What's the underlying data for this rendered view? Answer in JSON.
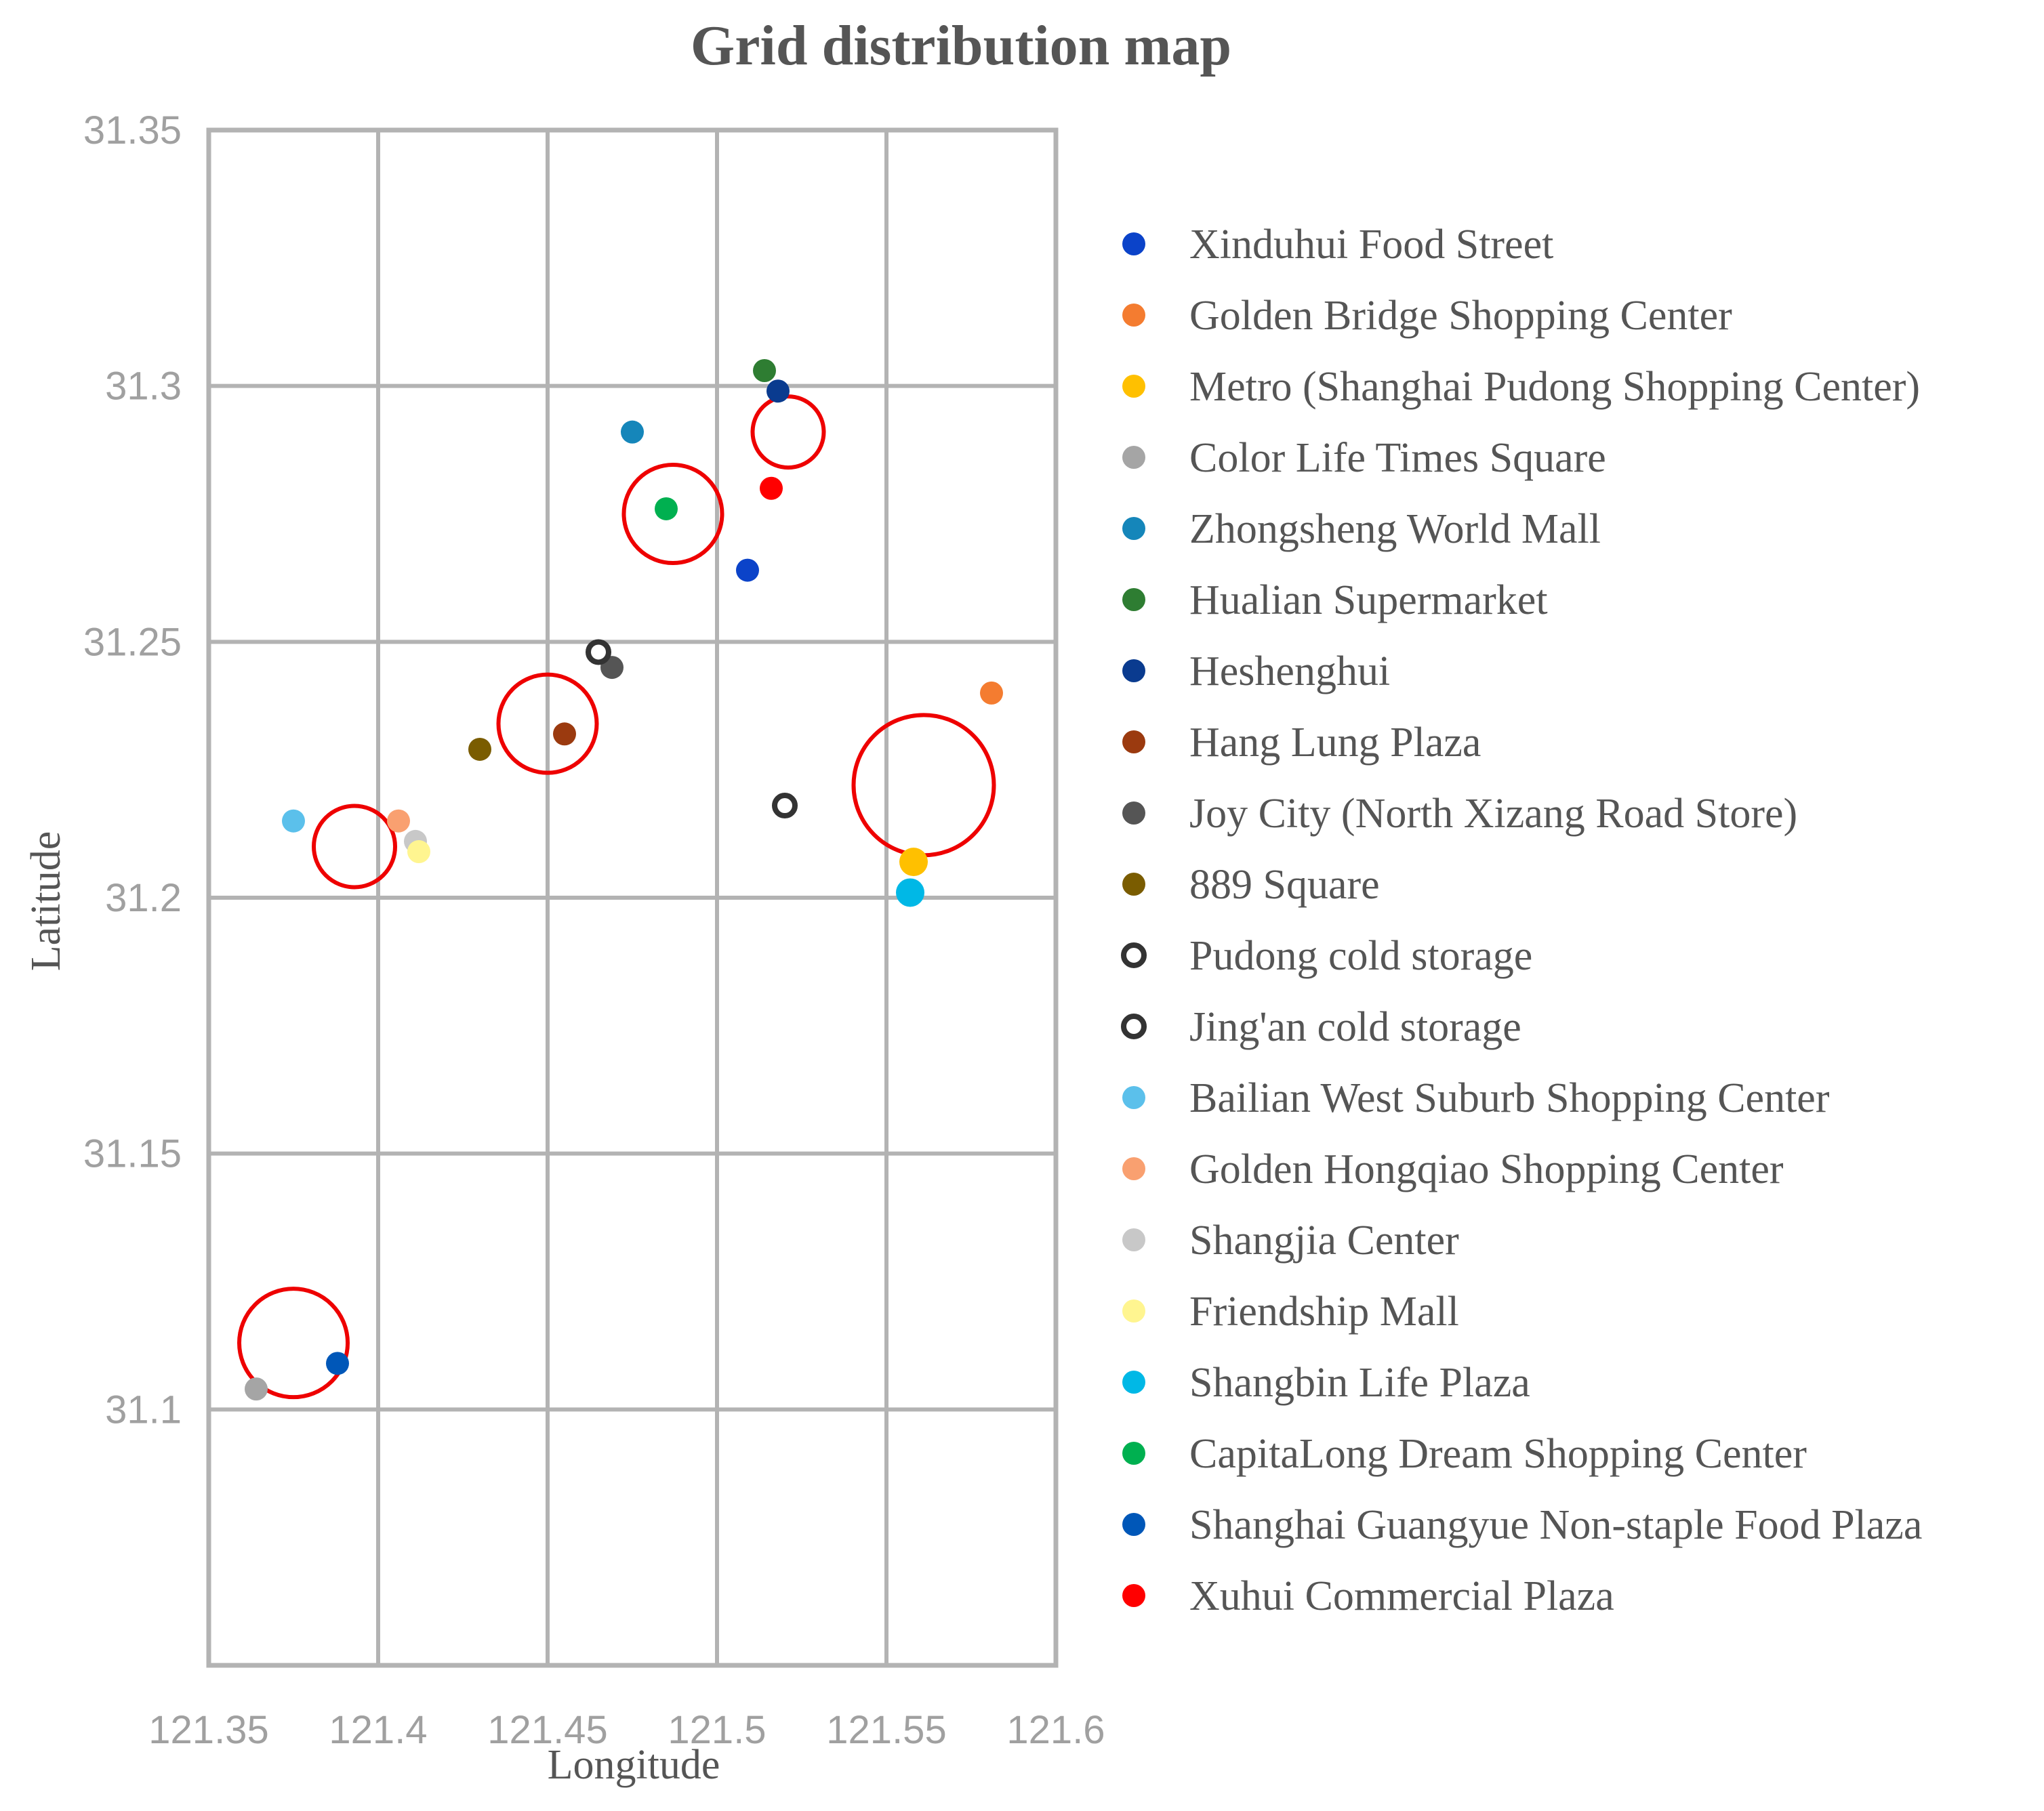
{
  "chart_data": {
    "type": "scatter",
    "title": "Grid distribution map",
    "xlabel": "Longitude",
    "ylabel": "Latitude",
    "xlim": [
      121.35,
      121.6
    ],
    "ylim": [
      31.05,
      31.35
    ],
    "x_ticks": [
      "121.35",
      "121.4",
      "121.45",
      "121.5",
      "121.55",
      "121.6"
    ],
    "y_ticks": [
      "31.1",
      "31.15",
      "31.2",
      "31.25",
      "31.3",
      "31.35"
    ],
    "grid": true,
    "legend_position": "right",
    "series": [
      {
        "name": "Xinduhui Food Street",
        "color": "#0b43c9",
        "marker": "filled",
        "x": 121.509,
        "y": 31.264
      },
      {
        "name": "Golden Bridge Shopping Center",
        "color": "#f47c30",
        "marker": "filled",
        "x": 121.581,
        "y": 31.24
      },
      {
        "name": "Metro (Shanghai Pudong Shopping Center)",
        "color": "#ffc000",
        "marker": "filled",
        "x": 121.558,
        "y": 31.207
      },
      {
        "name": "Color Life Times Square",
        "color": "#a5a5a5",
        "marker": "filled",
        "x": 121.364,
        "y": 31.104
      },
      {
        "name": "Zhongsheng World Mall",
        "color": "#1586ba",
        "marker": "filled",
        "x": 121.475,
        "y": 31.291
      },
      {
        "name": "Hualian Supermarket",
        "color": "#2e7d32",
        "marker": "filled",
        "x": 121.514,
        "y": 31.303
      },
      {
        "name": "Heshenghui",
        "color": "#0a3b8f",
        "marker": "filled",
        "x": 121.518,
        "y": 31.299
      },
      {
        "name": "Hang Lung Plaza",
        "color": "#9b3a0f",
        "marker": "filled",
        "x": 121.455,
        "y": 31.232
      },
      {
        "name": "Joy City (North Xizang Road Store)",
        "color": "#555555",
        "marker": "filled",
        "x": 121.469,
        "y": 31.245
      },
      {
        "name": "889 Square",
        "color": "#7a5c00",
        "marker": "filled",
        "x": 121.43,
        "y": 31.229
      },
      {
        "name": "Pudong cold storage",
        "color": "#333333",
        "marker": "hollow",
        "x": 121.52,
        "y": 31.218
      },
      {
        "name": "Jing'an cold storage",
        "color": "#333333",
        "marker": "hollow",
        "x": 121.465,
        "y": 31.248
      },
      {
        "name": "Bailian West Suburb Shopping Center",
        "color": "#5bc0eb",
        "marker": "filled",
        "x": 121.375,
        "y": 31.215
      },
      {
        "name": "Golden Hongqiao Shopping Center",
        "color": "#f9a070",
        "marker": "filled",
        "x": 121.406,
        "y": 31.215
      },
      {
        "name": "Shangjia Center",
        "color": "#c8c8c8",
        "marker": "filled",
        "x": 121.411,
        "y": 31.211
      },
      {
        "name": "Friendship Mall",
        "color": "#fff590",
        "marker": "filled",
        "x": 121.412,
        "y": 31.209
      },
      {
        "name": "Shangbin Life Plaza",
        "color": "#00b8e6",
        "marker": "filled",
        "x": 121.557,
        "y": 31.201
      },
      {
        "name": "CapitaLong Dream Shopping Center",
        "color": "#00b050",
        "marker": "filled",
        "x": 121.485,
        "y": 31.276
      },
      {
        "name": "Shanghai Guangyue Non-staple Food Plaza",
        "color": "#0057b8",
        "marker": "filled",
        "x": 121.388,
        "y": 31.109
      },
      {
        "name": "Xuhui Commercial Plaza",
        "color": "#ff0000",
        "marker": "filled",
        "x": 121.516,
        "y": 31.28
      }
    ],
    "clusters": [
      {
        "x": 121.521,
        "y": 31.291,
        "r": 0.0105
      },
      {
        "x": 121.487,
        "y": 31.275,
        "r": 0.0145
      },
      {
        "x": 121.45,
        "y": 31.234,
        "r": 0.0145
      },
      {
        "x": 121.561,
        "y": 31.222,
        "r": 0.0207
      },
      {
        "x": 121.393,
        "y": 31.21,
        "r": 0.012
      },
      {
        "x": 121.375,
        "y": 31.113,
        "r": 0.016
      }
    ],
    "cluster_color": "#ee0000"
  }
}
